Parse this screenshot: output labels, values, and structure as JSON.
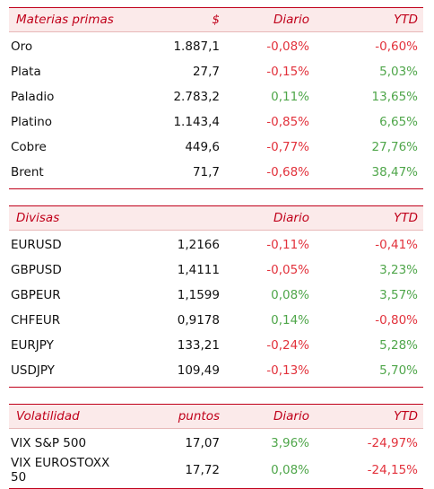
{
  "tables": [
    {
      "header": [
        "Materias primas",
        "$",
        "Diario",
        "YTD"
      ],
      "rows": [
        [
          "Oro",
          "1.887,1",
          "-0,08%",
          "-0,60%"
        ],
        [
          "Plata",
          "27,7",
          "-0,15%",
          "5,03%"
        ],
        [
          "Paladio",
          "2.783,2",
          "0,11%",
          "13,65%"
        ],
        [
          "Platino",
          "1.143,4",
          "-0,85%",
          "6,65%"
        ],
        [
          "Cobre",
          "449,6",
          "-0,77%",
          "27,76%"
        ],
        [
          "Brent",
          "71,7",
          "-0,68%",
          "38,47%"
        ]
      ]
    },
    {
      "header": [
        "Divisas",
        "",
        "Diario",
        "YTD"
      ],
      "rows": [
        [
          "EURUSD",
          "1,2166",
          "-0,11%",
          "-0,41%"
        ],
        [
          "GBPUSD",
          "1,4111",
          "-0,05%",
          "3,23%"
        ],
        [
          "GBPEUR",
          "1,1599",
          "0,08%",
          "3,57%"
        ],
        [
          "CHFEUR",
          "0,9178",
          "0,14%",
          "-0,80%"
        ],
        [
          "EURJPY",
          "133,21",
          "-0,24%",
          "5,28%"
        ],
        [
          "USDJPY",
          "109,49",
          "-0,13%",
          "5,70%"
        ]
      ]
    },
    {
      "header": [
        "Volatilidad",
        "puntos",
        "Diario",
        "YTD"
      ],
      "rows": [
        [
          "VIX S&P 500",
          "17,07",
          "3,96%",
          "-24,97%"
        ],
        [
          "VIX EUROSTOXX 50",
          "17,72",
          "0,08%",
          "-24,15%"
        ]
      ]
    }
  ]
}
